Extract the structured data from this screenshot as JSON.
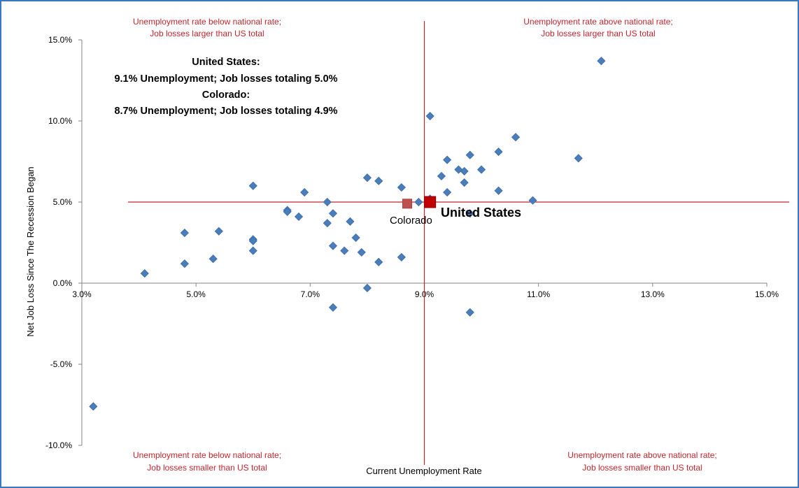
{
  "chart_data": {
    "type": "scatter",
    "xlabel": "Current Unemployment Rate",
    "ylabel": "Net Job Loss Since The Recession Began",
    "xlim": [
      3.0,
      15.0
    ],
    "ylim": [
      -10.0,
      15.0
    ],
    "x_ticks": [
      3,
      5,
      7,
      9,
      11,
      13,
      15
    ],
    "y_ticks": [
      -10,
      -5,
      0,
      5,
      10,
      15
    ],
    "x_tick_labels": [
      "3.0%",
      "5.0%",
      "7.0%",
      "9.0%",
      "11.0%",
      "13.0%",
      "15.0%"
    ],
    "y_tick_labels": [
      "-10.0%",
      "-5.0%",
      "0.0%",
      "5.0%",
      "10.0%",
      "15.0%"
    ],
    "grid": false,
    "reference_lines": {
      "x": 9.0,
      "y": 5.0,
      "color": "#c0262c"
    },
    "series": [
      {
        "color": "#4a7ebb",
        "marker": "diamond",
        "points": [
          [
            3.2,
            -7.6
          ],
          [
            4.1,
            0.6
          ],
          [
            4.8,
            3.1
          ],
          [
            4.8,
            1.2
          ],
          [
            5.3,
            1.5
          ],
          [
            5.4,
            3.2
          ],
          [
            6.0,
            6.0
          ],
          [
            6.0,
            2.7
          ],
          [
            6.0,
            2.6
          ],
          [
            6.0,
            2.0
          ],
          [
            6.6,
            4.5
          ],
          [
            6.6,
            4.4
          ],
          [
            6.8,
            4.1
          ],
          [
            6.9,
            5.6
          ],
          [
            7.3,
            5.0
          ],
          [
            7.3,
            3.7
          ],
          [
            7.4,
            4.3
          ],
          [
            7.4,
            2.3
          ],
          [
            7.4,
            -1.5
          ],
          [
            7.6,
            2.0
          ],
          [
            7.7,
            3.8
          ],
          [
            7.8,
            2.8
          ],
          [
            7.9,
            1.9
          ],
          [
            8.0,
            6.5
          ],
          [
            8.0,
            -0.3
          ],
          [
            8.2,
            6.3
          ],
          [
            8.2,
            1.3
          ],
          [
            8.6,
            5.9
          ],
          [
            8.6,
            1.6
          ],
          [
            8.9,
            5.0
          ],
          [
            9.1,
            10.3
          ],
          [
            9.1,
            5.2
          ],
          [
            9.3,
            6.6
          ],
          [
            9.4,
            7.6
          ],
          [
            9.4,
            5.6
          ],
          [
            9.6,
            7.0
          ],
          [
            9.7,
            6.9
          ],
          [
            9.7,
            6.2
          ],
          [
            9.8,
            7.9
          ],
          [
            9.8,
            4.3
          ],
          [
            9.8,
            -1.8
          ],
          [
            10.0,
            7.0
          ],
          [
            10.3,
            8.1
          ],
          [
            10.3,
            5.7
          ],
          [
            10.6,
            9.0
          ],
          [
            10.9,
            5.1
          ],
          [
            11.7,
            7.7
          ],
          [
            12.1,
            13.7
          ]
        ]
      }
    ],
    "highlights": [
      {
        "name": "Colorado",
        "x": 8.7,
        "y": 4.9,
        "color": "#c0504d"
      },
      {
        "name": "United States",
        "x": 9.1,
        "y": 5.0,
        "color": "#c00000"
      }
    ],
    "annotations": {
      "quadrant_top_left": [
        "Unemployment rate below national rate;",
        "Job losses larger than US total"
      ],
      "quadrant_top_right": [
        "Unemployment rate above national rate;",
        "Job losses larger than US total"
      ],
      "quadrant_bottom_left": [
        "Unemployment rate below national rate;",
        "Job losses smaller than US total"
      ],
      "quadrant_bottom_right": [
        "Unemployment rate above national rate;",
        "Job losses smaller than US total"
      ],
      "summary": [
        "United States:",
        "9.1% Unemployment; Job losses totaling 5.0%",
        "Colorado:",
        "8.7% Unemployment; Job losses totaling 4.9%"
      ]
    }
  }
}
